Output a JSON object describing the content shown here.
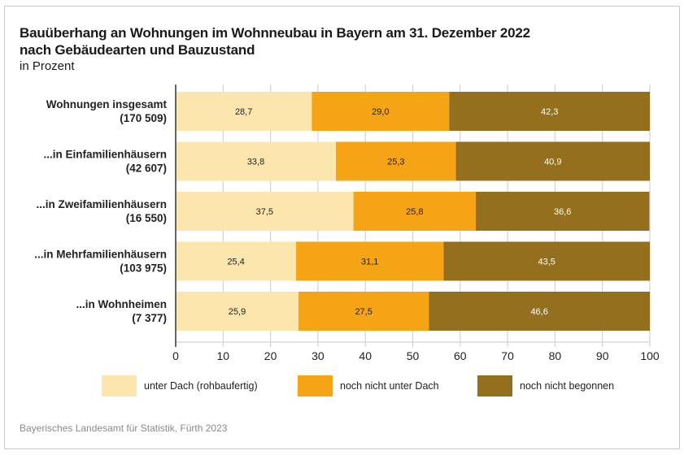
{
  "chart_data": {
    "type": "bar",
    "orientation": "horizontal",
    "stacked": true,
    "title": "Bauüberhang an Wohnungen im Wohnneubau in Bayern am 31. Dezember 2022",
    "subtitle": "nach Gebäudearten und Bauzustand",
    "unit": "in Prozent",
    "categories": [
      {
        "name": "Wohnungen insgesamt",
        "count": "(170 509)"
      },
      {
        "name": "...in Einfamilienhäusern",
        "count": "(42 607)"
      },
      {
        "name": "...in Zweifamilienhäusern",
        "count": "(16 550)"
      },
      {
        "name": "...in Mehrfamilienhäusern",
        "count": "(103 975)"
      },
      {
        "name": "...in Wohnheimen",
        "count": "(7 377)"
      }
    ],
    "series": [
      {
        "name": "unter Dach (rohbaufertig)",
        "color": "#fde6ad",
        "label_color": "#222222",
        "values": [
          28.7,
          33.8,
          37.5,
          25.4,
          25.9
        ],
        "labels": [
          "28,7",
          "33,8",
          "37,5",
          "25,4",
          "25,9"
        ]
      },
      {
        "name": "noch nicht unter Dach",
        "color": "#f5a415",
        "label_color": "#222222",
        "values": [
          29.0,
          25.3,
          25.8,
          31.1,
          27.5
        ],
        "labels": [
          "29,0",
          "25,3",
          "25,8",
          "31,1",
          "27,5"
        ]
      },
      {
        "name": "noch nicht begonnen",
        "color": "#94701e",
        "label_color": "#ffffff",
        "values": [
          42.3,
          40.9,
          36.6,
          43.5,
          46.6
        ],
        "labels": [
          "42,3",
          "40,9",
          "36,6",
          "43,5",
          "46,6"
        ]
      }
    ],
    "xlim": [
      0,
      100
    ],
    "xticks": [
      0,
      10,
      20,
      30,
      40,
      50,
      60,
      70,
      80,
      90,
      100
    ],
    "grid": true,
    "legend_position": "bottom",
    "xlabel": "",
    "ylabel": ""
  },
  "source": "Bayerisches Landesamt für Statistik, Fürth 2023"
}
